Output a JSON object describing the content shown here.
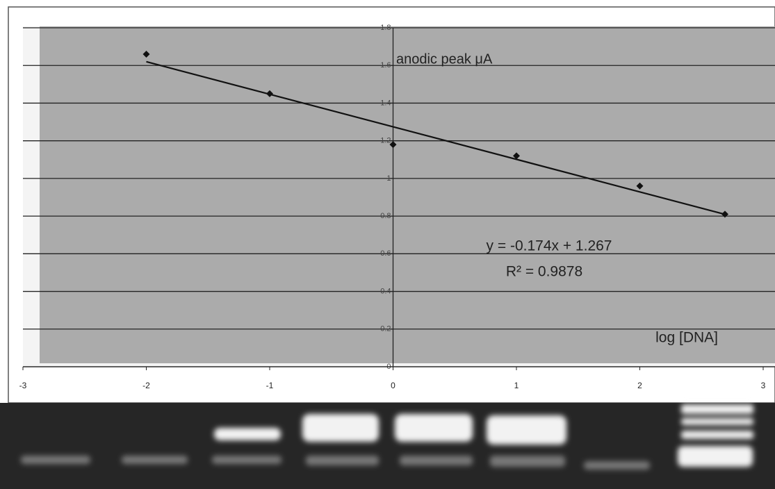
{
  "chart_data": {
    "type": "scatter",
    "x_label": "log [DNA]",
    "y_label": "anodic peak μA",
    "annotations": [
      "y = -0.174x + 1.267",
      "R² = 0.9878"
    ],
    "x": [
      -2,
      -1,
      0,
      1,
      2,
      2.69
    ],
    "values": [
      1.66,
      1.45,
      1.18,
      1.12,
      0.96,
      0.81
    ],
    "color": "#111111",
    "xlim": [
      -3,
      3
    ],
    "xticks": [
      -3,
      -2,
      -1,
      0,
      1,
      2,
      3
    ],
    "ylim": [
      0,
      1.8
    ],
    "yticks": [
      0,
      0.2,
      0.4,
      0.6,
      0.8,
      1,
      1.2,
      1.4,
      1.6,
      1.8
    ],
    "grid": true,
    "trendline": true
  }
}
